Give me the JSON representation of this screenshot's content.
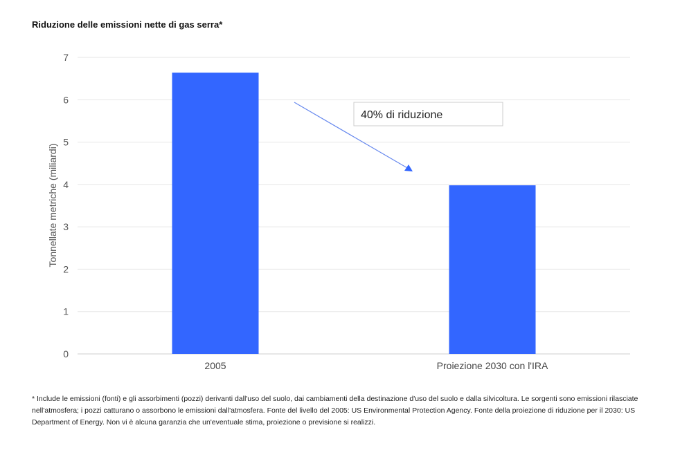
{
  "chart_data": {
    "type": "bar",
    "title": "Riduzione delle emissioni nette di gas serra*",
    "categories": [
      "2005",
      "Proiezione 2030 con l'IRA"
    ],
    "values": [
      6.64,
      3.98
    ],
    "xlabel": "",
    "ylabel": "Tonnellate metriche (miliardi)",
    "ylim": [
      0,
      7
    ],
    "yticks": [
      "0",
      "1",
      "2",
      "3",
      "4",
      "5",
      "6",
      "7"
    ],
    "grid": true,
    "bar_color": "#3366FF",
    "annotation": "40% di riduzione"
  },
  "footnote": "* Include le emissioni (fonti) e gli assorbimenti (pozzi) derivanti dall'uso del suolo, dai cambiamenti della destinazione d'uso del suolo e dalla silvicoltura. Le sorgenti sono emissioni rilasciate nell'atmosfera; i pozzi catturano o assorbono le emissioni dall'atmosfera. Fonte del livello del 2005: US Environmental Protection Agency. Fonte della proiezione di riduzione per il 2030: US Department of Energy. Non vi è alcuna garanzia che un'eventuale stima, proiezione o previsione si realizzi."
}
